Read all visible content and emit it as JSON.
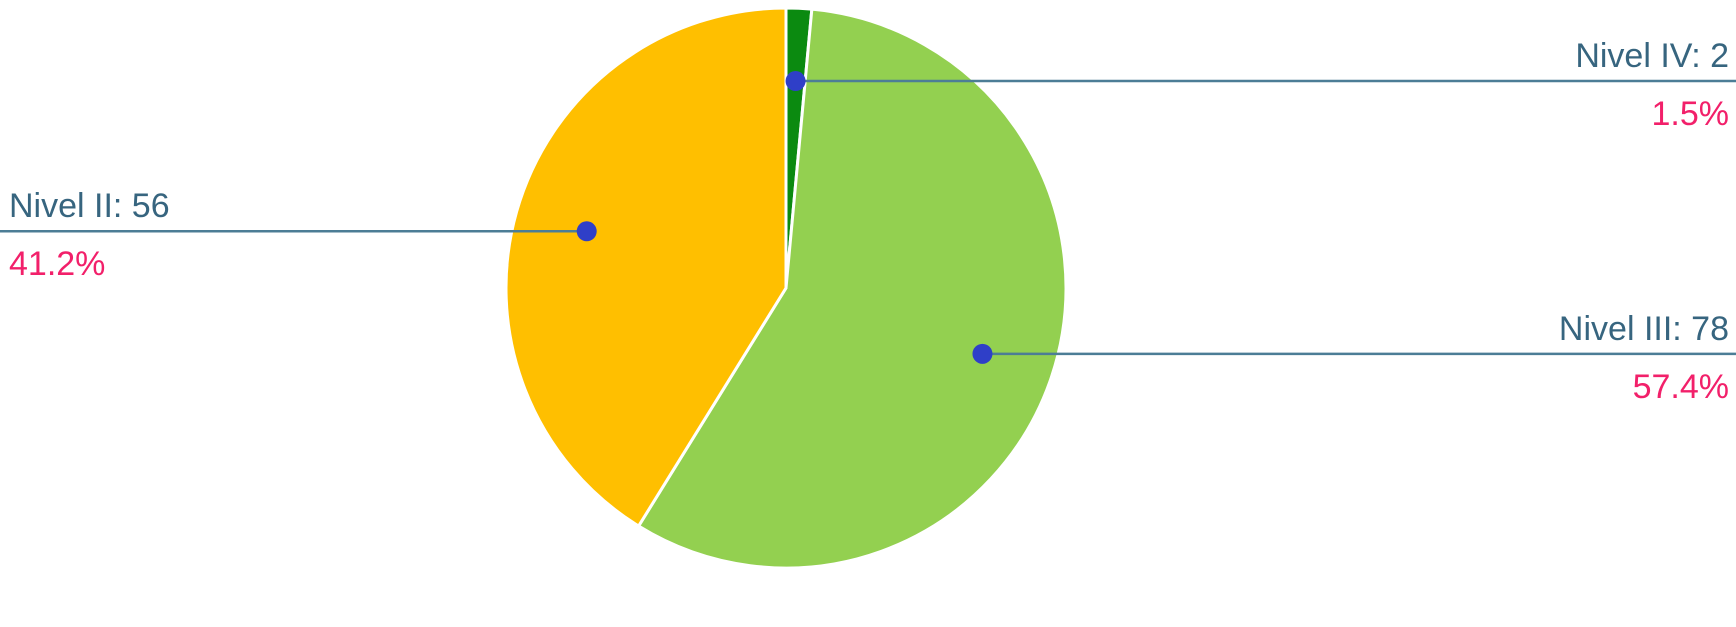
{
  "chart_data": {
    "type": "pie",
    "title": "",
    "slices": [
      {
        "name": "Nivel IV",
        "value": 2,
        "percent_label": "1.5%",
        "name_label": "Nivel IV: 2",
        "color": "#0b8a10"
      },
      {
        "name": "Nivel III",
        "value": 78,
        "percent_label": "57.4%",
        "name_label": "Nivel III: 78",
        "color": "#93d050"
      },
      {
        "name": "Nivel II",
        "value": 56,
        "percent_label": "41.2%",
        "name_label": "Nivel II: 56",
        "color": "#ffbf00"
      }
    ],
    "start_angle_deg": 0,
    "direction": "clockwise",
    "marker_color": "#2f3fc8"
  }
}
